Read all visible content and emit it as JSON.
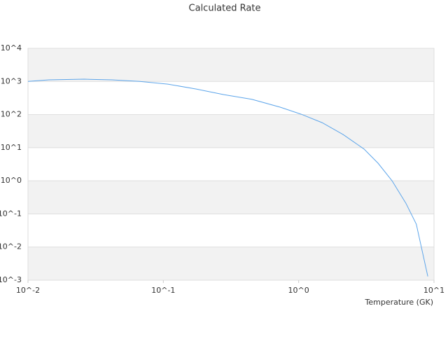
{
  "chart_data": {
    "type": "line",
    "title": "Calculated Rate",
    "x_label": "Temperature (GK)",
    "log_x": true,
    "log_y": true,
    "grid": true,
    "xlim": [
      0.01,
      10
    ],
    "xticks": [
      {
        "value": 0.01,
        "label": "10^-2"
      },
      {
        "value": 0.1,
        "label": "10^-1"
      },
      {
        "value": 1,
        "label": "10^0"
      },
      {
        "value": 10,
        "label": "10^1"
      }
    ],
    "ylim": [
      0.001,
      10000
    ],
    "yticks": [
      {
        "value": 0.001,
        "label": "10^-3"
      },
      {
        "value": 0.01,
        "label": "10^-2"
      },
      {
        "value": 0.1,
        "label": "10^-1"
      },
      {
        "value": 1,
        "label": "10^0"
      },
      {
        "value": 10,
        "label": "10^1"
      },
      {
        "value": 100,
        "label": "10^2"
      },
      {
        "value": 1000,
        "label": "10^3"
      },
      {
        "value": 10000,
        "label": "10^4"
      }
    ],
    "x": [
      0.01,
      0.0143,
      0.026,
      0.0417,
      0.067,
      0.108,
      0.175,
      0.28,
      0.45,
      0.73,
      1.04,
      1.49,
      2.13,
      3.04,
      3.86,
      4.9,
      6.2,
      7.4,
      9.0
    ],
    "series": [
      {
        "color": "#5da5ea",
        "values": [
          1000,
          1120,
          1170,
          1120,
          1000,
          830,
          590,
          400,
          290,
          167,
          103,
          57,
          25,
          9.1,
          3.4,
          1.0,
          0.21,
          0.049,
          0.0013
        ]
      }
    ]
  }
}
